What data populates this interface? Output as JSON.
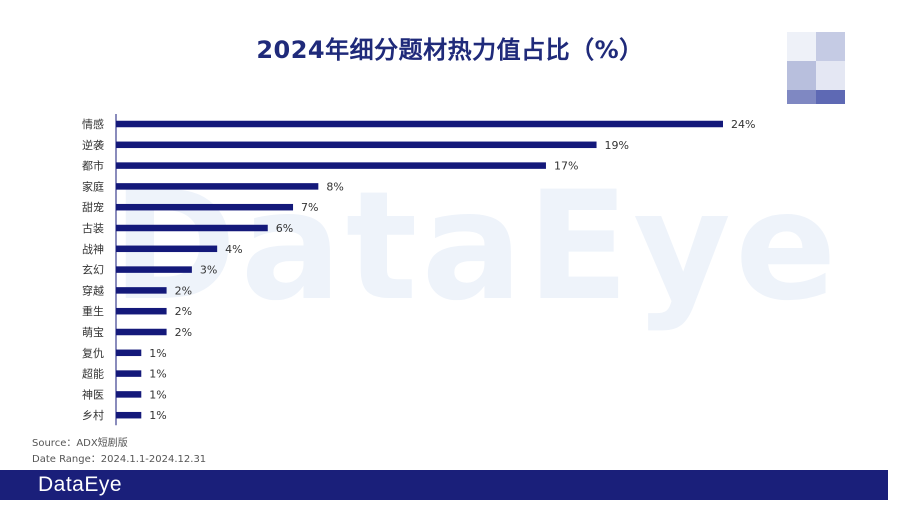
{
  "header": {
    "title": "2024年细分题材热力值占比（%）"
  },
  "watermark_text": "DataEye",
  "colors": {
    "bar": "#14197a",
    "axis": "#14197a",
    "label": "#333333",
    "footer": "#1a1f7a"
  },
  "chart_data": {
    "type": "bar",
    "orientation": "horizontal",
    "categories": [
      "情感",
      "逆袭",
      "都市",
      "家庭",
      "甜宠",
      "古装",
      "战神",
      "玄幻",
      "穿越",
      "重生",
      "萌宝",
      "复仇",
      "超能",
      "神医",
      "乡村"
    ],
    "values": [
      24,
      19,
      17,
      8,
      7,
      6,
      4,
      3,
      2,
      2,
      2,
      1,
      1,
      1,
      1
    ],
    "value_labels": [
      "24%",
      "19%",
      "17%",
      "8%",
      "7%",
      "6%",
      "4%",
      "3%",
      "2%",
      "2%",
      "2%",
      "1%",
      "1%",
      "1%",
      "1%"
    ],
    "xlim": [
      0,
      24
    ],
    "grid": false,
    "legend": "none"
  },
  "source": {
    "line1": "Source：ADX短剧版",
    "line2": "Date Range：2024.1.1-2024.12.31"
  },
  "footer": {
    "logo_text": "DataEye"
  }
}
